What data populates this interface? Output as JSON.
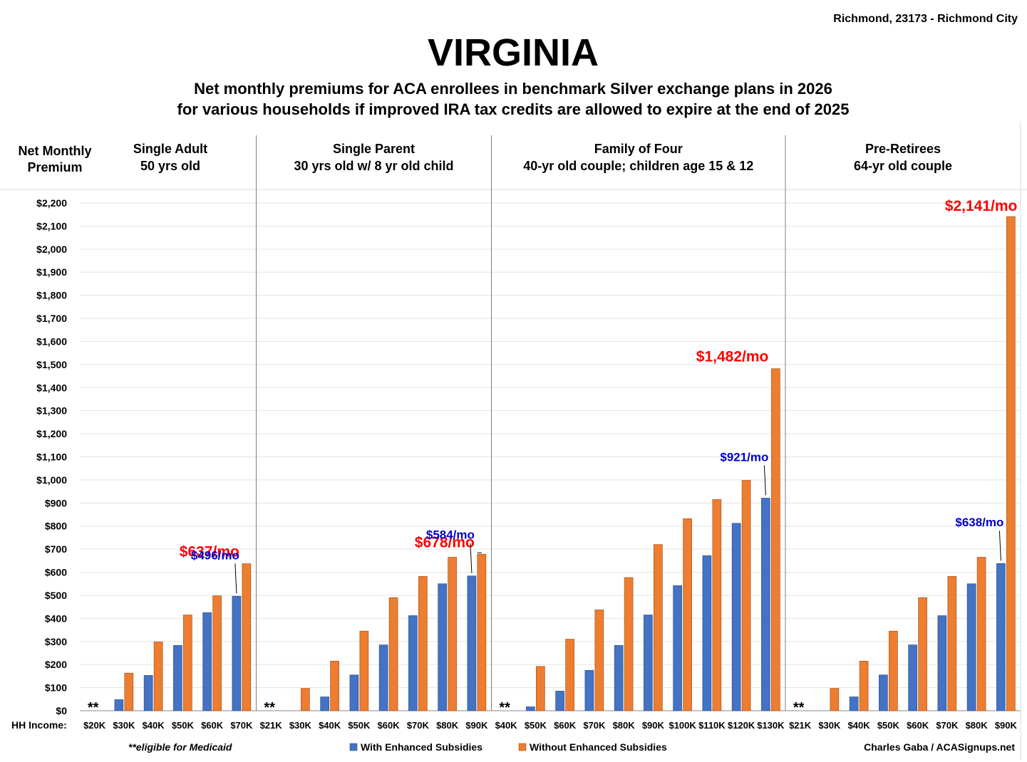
{
  "header": {
    "location": "Richmond, 23173 - Richmond City",
    "title": "VIRGINIA",
    "subtitle_line1": "Net monthly premiums for ACA enrollees in benchmark Silver exchange plans in 2026",
    "subtitle_line2": "for various households if improved IRA tax credits are allowed to expire at the end of 2025"
  },
  "axis": {
    "ylabel_line1": "Net Monthly",
    "ylabel_line2": "Premium",
    "xlabel": "HH Income:"
  },
  "footer": {
    "note": "**eligible for Medicaid",
    "credit": "Charles Gaba / ACASignups.net"
  },
  "chart_data": {
    "type": "bar",
    "ylim": [
      0,
      2200
    ],
    "ytick_step": 100,
    "ytick_labels": [
      "$0",
      "$100",
      "$200",
      "$300",
      "$400",
      "$500",
      "$600",
      "$700",
      "$800",
      "$900",
      "$1,000",
      "$1,100",
      "$1,200",
      "$1,300",
      "$1,400",
      "$1,500",
      "$1,600",
      "$1,700",
      "$1,800",
      "$1,900",
      "$2,000",
      "$2,100",
      "$2,200"
    ],
    "grid": true,
    "legend_position": "bottom",
    "series_names": [
      "With Enhanced Subsidies",
      "Without Enhanced Subsidies"
    ],
    "colors": {
      "with": "#4472C4",
      "without": "#ED7D31",
      "label_blue": "#0000CC",
      "label_red": "#FF0000"
    },
    "medicaid_marker": "**",
    "groups": [
      {
        "title_line1": "Single Adult",
        "title_line2": "50 yrs old",
        "categories": [
          "$20K",
          "$30K",
          "$40K",
          "$50K",
          "$60K",
          "$70K"
        ],
        "with": [
          0,
          48,
          153,
          283,
          425,
          496
        ],
        "without": [
          0,
          163,
          298,
          415,
          498,
          637
        ],
        "medicaid_index": 0,
        "label_with": "$496/mo",
        "label_without": "$637/mo"
      },
      {
        "title_line1": "Single Parent",
        "title_line2": "30 yrs old w/ 8 yr old child",
        "categories": [
          "$21K",
          "$30K",
          "$40K",
          "$50K",
          "$60K",
          "$70K",
          "$80K",
          "$90K"
        ],
        "with": [
          0,
          0,
          60,
          155,
          285,
          412,
          550,
          584
        ],
        "without": [
          0,
          97,
          215,
          345,
          490,
          582,
          665,
          678
        ],
        "medicaid_index": 0,
        "label_with": "$584/mo",
        "label_without": "$678/mo"
      },
      {
        "title_line1": "Family of Four",
        "title_line2": "40-yr old couple; children age 15 & 12",
        "categories": [
          "$40K",
          "$50K",
          "$60K",
          "$70K",
          "$80K",
          "$90K",
          "$100K",
          "$110K",
          "$120K",
          "$130K"
        ],
        "with": [
          0,
          17,
          85,
          175,
          283,
          415,
          542,
          672,
          812,
          921
        ],
        "without": [
          0,
          192,
          310,
          437,
          577,
          720,
          832,
          915,
          998,
          1482
        ],
        "medicaid_index": 0,
        "label_with": "$921/mo",
        "label_without": "$1,482/mo"
      },
      {
        "title_line1": "Pre-Retirees",
        "title_line2": "64-yr old couple",
        "categories": [
          "$21K",
          "$30K",
          "$40K",
          "$50K",
          "$60K",
          "$70K",
          "$80K",
          "$90K"
        ],
        "with": [
          0,
          0,
          60,
          155,
          285,
          412,
          550,
          638
        ],
        "without": [
          0,
          97,
          215,
          345,
          490,
          582,
          665,
          2141
        ],
        "medicaid_index": 0,
        "label_with": "$638/mo",
        "label_without": "$2,141/mo"
      }
    ]
  }
}
